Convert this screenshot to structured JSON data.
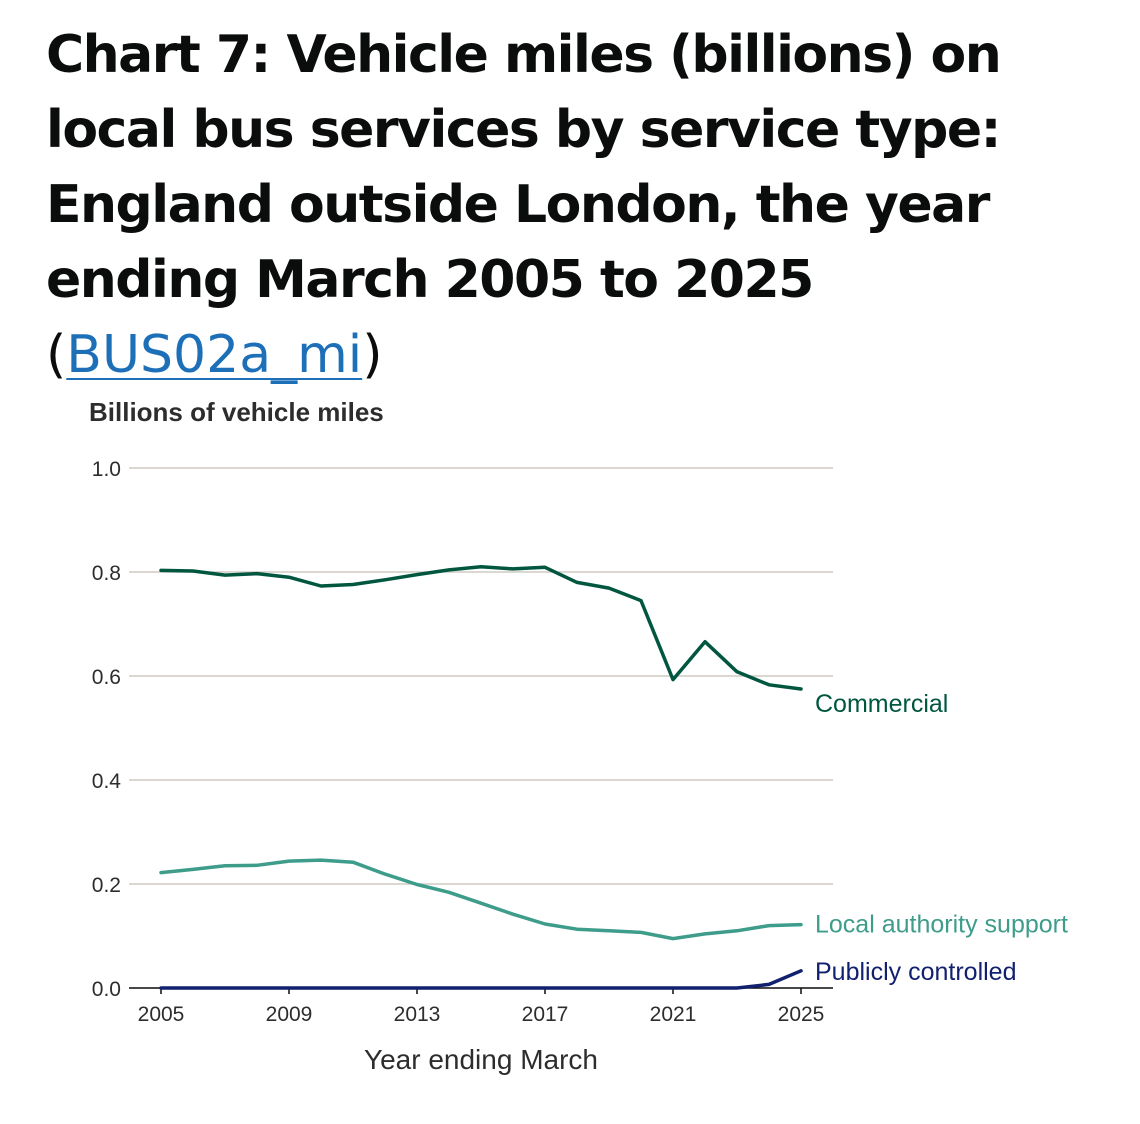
{
  "heading": {
    "text": "Chart 7: Vehicle miles (billions) on local bus services by service type: England outside London, the year ending March 2005 to 2025",
    "open_paren": "(",
    "link_text": "BUS02a_mi",
    "close_paren": ")"
  },
  "chart_data": {
    "type": "line",
    "ylabel": "Billions of vehicle miles",
    "xlabel": "Year ending March",
    "ylim": [
      0,
      1.0
    ],
    "xlim": [
      2005,
      2025
    ],
    "yticks": [
      "0.0",
      "0.2",
      "0.4",
      "0.6",
      "0.8",
      "1.0"
    ],
    "ytick_values": [
      0,
      0.2,
      0.4,
      0.6,
      0.8,
      1.0
    ],
    "xticks": [
      "2005",
      "2009",
      "2013",
      "2017",
      "2021",
      "2025"
    ],
    "xtick_values": [
      2005,
      2009,
      2013,
      2017,
      2021,
      2025
    ],
    "grid": true,
    "x": [
      2005,
      2006,
      2007,
      2008,
      2009,
      2010,
      2011,
      2012,
      2013,
      2014,
      2015,
      2016,
      2017,
      2018,
      2019,
      2020,
      2021,
      2022,
      2023,
      2024,
      2025
    ],
    "series": [
      {
        "name": "Commercial",
        "color": "#00563f",
        "values": [
          0.803,
          0.802,
          0.794,
          0.797,
          0.79,
          0.773,
          0.776,
          0.785,
          0.795,
          0.804,
          0.81,
          0.806,
          0.809,
          0.78,
          0.769,
          0.745,
          0.593,
          0.666,
          0.608,
          0.583,
          0.575
        ]
      },
      {
        "name": "Local authority support",
        "color": "#3e9c8b",
        "values": [
          0.222,
          0.228,
          0.235,
          0.236,
          0.244,
          0.246,
          0.242,
          0.219,
          0.199,
          0.184,
          0.163,
          0.142,
          0.123,
          0.113,
          0.11,
          0.107,
          0.095,
          0.104,
          0.11,
          0.12,
          0.122
        ]
      },
      {
        "name": "Publicly controlled",
        "color": "#12216f",
        "values": [
          0,
          0,
          0,
          0,
          0,
          0,
          0,
          0,
          0,
          0,
          0,
          0,
          0,
          0,
          0,
          0,
          0,
          0,
          0,
          0.007,
          0.033
        ]
      }
    ]
  }
}
